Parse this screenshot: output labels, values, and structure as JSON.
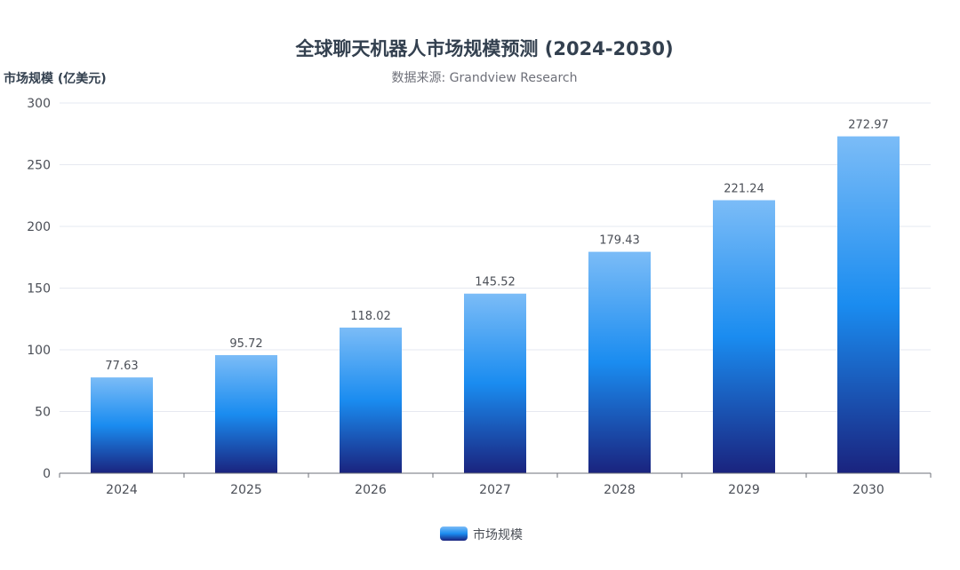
{
  "chart_data": {
    "type": "bar",
    "title": "全球聊天机器人市场规模预测 (2024-2030)",
    "subtitle": "数据来源: Grandview Research",
    "ylabel": "市场规模 (亿美元)",
    "xlabel": "",
    "categories": [
      "2024",
      "2025",
      "2026",
      "2027",
      "2028",
      "2029",
      "2030"
    ],
    "series": [
      {
        "name": "市场规模",
        "values": [
          77.63,
          95.72,
          118.02,
          145.52,
          179.43,
          221.24,
          272.97
        ],
        "value_labels": [
          "77.63",
          "95.72",
          "118.02",
          "145.52",
          "179.43",
          "221.24",
          "272.97"
        ]
      }
    ],
    "ylim": [
      0,
      300
    ],
    "yticks": [
      0,
      50,
      100,
      150,
      200,
      250,
      300
    ],
    "grid": true,
    "legend_position": "bottom-center",
    "colors": {
      "bar_top": "#7bbcf7",
      "bar_mid": "#1a8cf0",
      "bar_bottom": "#1a237e",
      "grid": "#e6e9f0",
      "axis": "#6e7079"
    }
  }
}
